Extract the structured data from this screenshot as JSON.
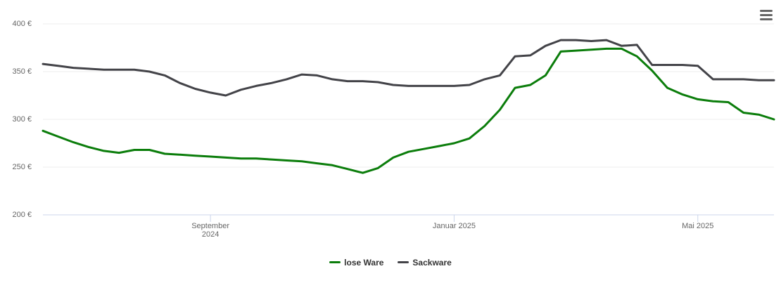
{
  "chart_data": {
    "type": "line",
    "x": [
      "2024-06",
      "2024-06",
      "2024-06",
      "2024-07",
      "2024-07",
      "2024-07",
      "2024-07",
      "2024-08",
      "2024-08",
      "2024-08",
      "2024-08",
      "2024-09",
      "2024-09",
      "2024-09",
      "2024-09",
      "2024-10",
      "2024-10",
      "2024-10",
      "2024-10",
      "2024-11",
      "2024-11",
      "2024-11",
      "2024-11",
      "2024-12",
      "2024-12",
      "2024-12",
      "2024-12",
      "2025-01",
      "2025-01",
      "2025-01",
      "2025-01",
      "2025-02",
      "2025-02",
      "2025-02",
      "2025-02",
      "2025-03",
      "2025-03",
      "2025-03",
      "2025-03",
      "2025-04",
      "2025-04",
      "2025-04",
      "2025-04",
      "2025-05",
      "2025-05",
      "2025-05",
      "2025-05",
      "2025-06",
      "2025-06"
    ],
    "series": [
      {
        "name": "lose Ware",
        "color": "#0b7d0b",
        "values": [
          288,
          282,
          276,
          271,
          267,
          265,
          268,
          268,
          264,
          263,
          262,
          261,
          260,
          259,
          259,
          258,
          257,
          256,
          254,
          252,
          248,
          244,
          249,
          260,
          266,
          269,
          272,
          275,
          280,
          293,
          310,
          333,
          336,
          346,
          371,
          372,
          373,
          374,
          374,
          366,
          351,
          333,
          326,
          321,
          319,
          318,
          307,
          305,
          300
        ]
      },
      {
        "name": "Sackware",
        "color": "#434348",
        "values": [
          358,
          356,
          354,
          353,
          352,
          352,
          352,
          350,
          346,
          338,
          332,
          328,
          325,
          331,
          335,
          338,
          342,
          347,
          346,
          342,
          340,
          340,
          339,
          336,
          335,
          335,
          335,
          335,
          336,
          342,
          346,
          366,
          367,
          377,
          383,
          383,
          382,
          383,
          377,
          378,
          357,
          357,
          357,
          356,
          342,
          342,
          342,
          341,
          341
        ]
      }
    ],
    "ylim": [
      200,
      400
    ],
    "yticks": [
      {
        "value": 200,
        "label": "200 €"
      },
      {
        "value": 250,
        "label": "250 €"
      },
      {
        "value": 300,
        "label": "300 €"
      },
      {
        "value": 350,
        "label": "350 €"
      },
      {
        "value": 400,
        "label": "400 €"
      }
    ],
    "xticks": [
      {
        "value": "2024-09",
        "label": "September 2024"
      },
      {
        "value": "2025-01",
        "label": "Januar 2025"
      },
      {
        "value": "2025-05",
        "label": "Mai 2025"
      }
    ],
    "grid": true,
    "legend": "bottom"
  }
}
